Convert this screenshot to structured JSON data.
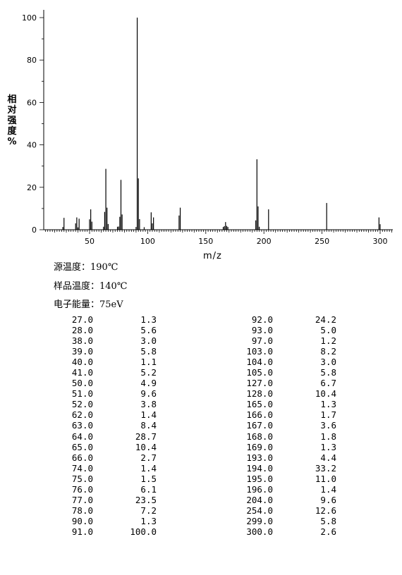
{
  "chart_data": {
    "type": "bar",
    "xlabel": "m/z",
    "ylabel_chars": [
      "相",
      "对",
      "强",
      "度",
      "%"
    ],
    "xlim": [
      40,
      310
    ],
    "ylim": [
      0,
      100
    ],
    "xticks": [
      50,
      100,
      150,
      200,
      250,
      300
    ],
    "yticks": [
      0,
      20,
      40,
      60,
      80,
      100
    ],
    "grid": false,
    "peaks": [
      {
        "mz": 27.0,
        "intensity": 1.3
      },
      {
        "mz": 28.0,
        "intensity": 5.6
      },
      {
        "mz": 38.0,
        "intensity": 3.0
      },
      {
        "mz": 39.0,
        "intensity": 5.8
      },
      {
        "mz": 40.0,
        "intensity": 1.1
      },
      {
        "mz": 41.0,
        "intensity": 5.2
      },
      {
        "mz": 50.0,
        "intensity": 4.9
      },
      {
        "mz": 51.0,
        "intensity": 9.6
      },
      {
        "mz": 52.0,
        "intensity": 3.8
      },
      {
        "mz": 62.0,
        "intensity": 1.4
      },
      {
        "mz": 63.0,
        "intensity": 8.4
      },
      {
        "mz": 64.0,
        "intensity": 28.7
      },
      {
        "mz": 65.0,
        "intensity": 10.4
      },
      {
        "mz": 66.0,
        "intensity": 2.7
      },
      {
        "mz": 74.0,
        "intensity": 1.4
      },
      {
        "mz": 75.0,
        "intensity": 1.5
      },
      {
        "mz": 76.0,
        "intensity": 6.1
      },
      {
        "mz": 77.0,
        "intensity": 23.5
      },
      {
        "mz": 78.0,
        "intensity": 7.2
      },
      {
        "mz": 90.0,
        "intensity": 1.3
      },
      {
        "mz": 91.0,
        "intensity": 100.0
      },
      {
        "mz": 92.0,
        "intensity": 24.2
      },
      {
        "mz": 93.0,
        "intensity": 5.0
      },
      {
        "mz": 97.0,
        "intensity": 1.2
      },
      {
        "mz": 103.0,
        "intensity": 8.2
      },
      {
        "mz": 104.0,
        "intensity": 3.0
      },
      {
        "mz": 105.0,
        "intensity": 5.8
      },
      {
        "mz": 127.0,
        "intensity": 6.7
      },
      {
        "mz": 128.0,
        "intensity": 10.4
      },
      {
        "mz": 165.0,
        "intensity": 1.3
      },
      {
        "mz": 166.0,
        "intensity": 1.7
      },
      {
        "mz": 167.0,
        "intensity": 3.6
      },
      {
        "mz": 168.0,
        "intensity": 1.8
      },
      {
        "mz": 169.0,
        "intensity": 1.3
      },
      {
        "mz": 193.0,
        "intensity": 4.4
      },
      {
        "mz": 194.0,
        "intensity": 33.2
      },
      {
        "mz": 195.0,
        "intensity": 11.0
      },
      {
        "mz": 196.0,
        "intensity": 1.4
      },
      {
        "mz": 204.0,
        "intensity": 9.6
      },
      {
        "mz": 254.0,
        "intensity": 12.6
      },
      {
        "mz": 299.0,
        "intensity": 5.8
      },
      {
        "mz": 300.0,
        "intensity": 2.6
      }
    ]
  },
  "conditions": {
    "source_temp": "源温度：190℃",
    "sample_temp": "样品温度：140℃",
    "electron_energy": "电子能量：75eV"
  },
  "table": {
    "rows": [
      [
        "27.0",
        "1.3",
        "92.0",
        "24.2"
      ],
      [
        "28.0",
        "5.6",
        "93.0",
        "5.0"
      ],
      [
        "38.0",
        "3.0",
        "97.0",
        "1.2"
      ],
      [
        "39.0",
        "5.8",
        "103.0",
        "8.2"
      ],
      [
        "40.0",
        "1.1",
        "104.0",
        "3.0"
      ],
      [
        "41.0",
        "5.2",
        "105.0",
        "5.8"
      ],
      [
        "50.0",
        "4.9",
        "127.0",
        "6.7"
      ],
      [
        "51.0",
        "9.6",
        "128.0",
        "10.4"
      ],
      [
        "52.0",
        "3.8",
        "165.0",
        "1.3"
      ],
      [
        "62.0",
        "1.4",
        "166.0",
        "1.7"
      ],
      [
        "63.0",
        "8.4",
        "167.0",
        "3.6"
      ],
      [
        "64.0",
        "28.7",
        "168.0",
        "1.8"
      ],
      [
        "65.0",
        "10.4",
        "169.0",
        "1.3"
      ],
      [
        "66.0",
        "2.7",
        "193.0",
        "4.4"
      ],
      [
        "74.0",
        "1.4",
        "194.0",
        "33.2"
      ],
      [
        "75.0",
        "1.5",
        "195.0",
        "11.0"
      ],
      [
        "76.0",
        "6.1",
        "196.0",
        "1.4"
      ],
      [
        "77.0",
        "23.5",
        "204.0",
        "9.6"
      ],
      [
        "78.0",
        "7.2",
        "254.0",
        "12.6"
      ],
      [
        "90.0",
        "1.3",
        "299.0",
        "5.8"
      ],
      [
        "91.0",
        "100.0",
        "300.0",
        "2.6"
      ]
    ]
  }
}
